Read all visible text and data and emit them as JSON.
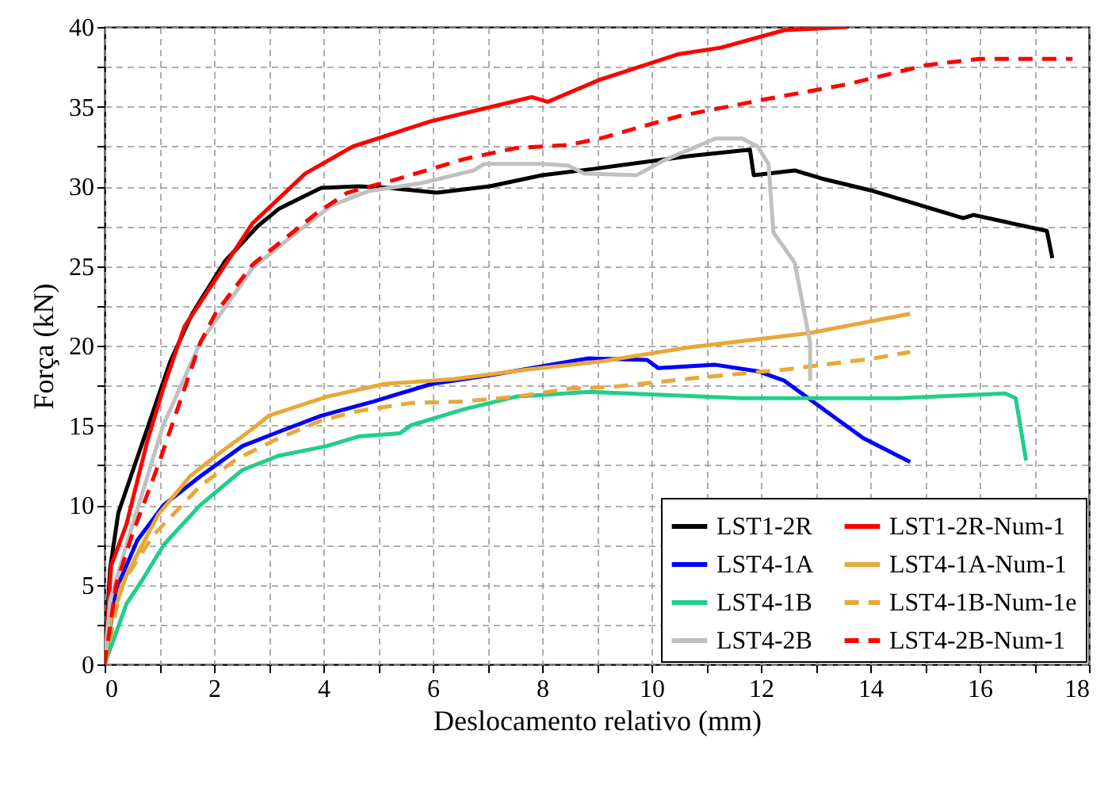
{
  "chart_data": {
    "type": "line",
    "xlabel": "Deslocamento relativo (mm)",
    "ylabel": "Força (kN)",
    "xlim": [
      0,
      18
    ],
    "ylim": [
      0,
      40
    ],
    "xticks": [
      0,
      {
        "value": 1,
        "label": null
      },
      2,
      {
        "value": 3,
        "label": null
      },
      4,
      {
        "value": 5,
        "label": null
      },
      6,
      {
        "value": 7,
        "label": null
      },
      8,
      {
        "value": 9,
        "label": null
      },
      10,
      {
        "value": 11,
        "label": null
      },
      12,
      {
        "value": 13,
        "label": null
      },
      14,
      {
        "value": 15,
        "label": null
      },
      16,
      {
        "value": 17,
        "label": null
      },
      18
    ],
    "yticks": [
      0,
      {
        "value": 2.5,
        "label": null
      },
      5,
      {
        "value": 7.5,
        "label": null
      },
      10,
      {
        "value": 12.5,
        "label": null
      },
      15,
      {
        "value": 17.5,
        "label": null
      },
      20,
      {
        "value": 22.5,
        "label": null
      },
      25,
      {
        "value": 27.5,
        "label": null
      },
      30,
      {
        "value": 32.5,
        "label": null
      },
      35,
      {
        "value": 37.5,
        "label": null
      },
      40
    ],
    "grid": true,
    "legend": "bottom right",
    "series": [
      {
        "name": "LST1-2R",
        "color": "#000000",
        "line_style": "solid",
        "x": [
          0,
          0.1,
          0.25,
          0.5,
          0.8,
          1.2,
          1.6,
          2.2,
          2.8,
          3.19,
          3.96,
          4.64,
          5.21,
          6.08,
          7.04,
          8.0,
          8.96,
          10.7,
          11.8,
          11.87,
          12.62,
          13.1,
          14.06,
          15.7,
          15.89,
          17.23,
          17.33
        ],
        "values": [
          0,
          6,
          9.5,
          12,
          15,
          19,
          22,
          25.3,
          27.5,
          28.6,
          29.9,
          30.0,
          29.9,
          29.6,
          30.0,
          30.7,
          31.1,
          31.9,
          32.3,
          30.7,
          31.0,
          30.5,
          29.7,
          28.0,
          28.2,
          27.2,
          25.5
        ]
      },
      {
        "name": "LST1-2R-Num-1",
        "color": "#ff0000",
        "line_style": "solid",
        "x": [
          0,
          0.12,
          0.4,
          0.78,
          1.08,
          1.46,
          2.23,
          2.71,
          3.67,
          4.54,
          5.98,
          7.33,
          7.81,
          8.1,
          9.06,
          10.5,
          11.27,
          12.43,
          13.58
        ],
        "values": [
          0,
          6.2,
          8.8,
          14,
          17.4,
          21.2,
          25.2,
          27.7,
          30.8,
          32.5,
          34.1,
          35.2,
          35.6,
          35.3,
          36.7,
          38.3,
          38.7,
          39.8,
          40
        ]
      },
      {
        "name": "LST4-1A",
        "color": "#0000ff",
        "line_style": "solid",
        "x": [
          0,
          0.21,
          0.6,
          1.08,
          1.75,
          2.52,
          3.19,
          3.96,
          4.92,
          5.98,
          7.14,
          8.48,
          8.85,
          9.92,
          10.12,
          11.17,
          11.94,
          12.43,
          13.19,
          13.87,
          14.73
        ],
        "values": [
          0,
          4.7,
          7.8,
          10,
          11.8,
          13.7,
          14.6,
          15.6,
          16.5,
          17.6,
          18.2,
          19.0,
          19.2,
          19.1,
          18.6,
          18.8,
          18.4,
          17.8,
          15.9,
          14.2,
          12.7
        ]
      },
      {
        "name": "LST4-1A-Num-1",
        "color": "#e8a838",
        "line_style": "solid",
        "x": [
          0,
          0.12,
          0.4,
          0.98,
          1.56,
          2.04,
          2.71,
          3.0,
          4.06,
          5.12,
          6.37,
          7.71,
          9.06,
          10.7,
          12.9,
          14.73
        ],
        "values": [
          0,
          2.8,
          5.6,
          9.4,
          11.8,
          13.1,
          14.8,
          15.6,
          16.8,
          17.6,
          17.9,
          18.5,
          19.0,
          19.9,
          20.8,
          22.0
        ]
      },
      {
        "name": "LST4-1B",
        "color": "#1fcf8a",
        "line_style": "solid",
        "x": [
          0,
          0.4,
          0.69,
          1.08,
          1.75,
          2.52,
          3.19,
          4.06,
          4.64,
          5.4,
          5.6,
          6.56,
          7.52,
          8.87,
          11.66,
          14.5,
          16.47,
          16.66,
          16.85
        ],
        "values": [
          0,
          3.8,
          5.3,
          7.5,
          10,
          12.2,
          13.1,
          13.7,
          14.3,
          14.5,
          15.0,
          16.0,
          16.8,
          17.1,
          16.7,
          16.7,
          17.0,
          16.7,
          12.8
        ]
      },
      {
        "name": "LST4-1B-Num-1e",
        "color": "#e8a838",
        "line_style": "dashed",
        "x": [
          0,
          0.31,
          0.89,
          1.75,
          2.42,
          3.19,
          3.96,
          4.64,
          5.6,
          6.56,
          7.52,
          8.48,
          9.25,
          10.89,
          12.43,
          14.06,
          14.73
        ],
        "values": [
          0,
          5,
          8.1,
          11.2,
          12.9,
          14.2,
          15.3,
          15.9,
          16.4,
          16.5,
          16.8,
          17.3,
          17.4,
          18.0,
          18.5,
          19.2,
          19.6
        ]
      },
      {
        "name": "LST4-2B",
        "color": "#c0c0c0",
        "line_style": "solid",
        "x": [
          0,
          0.1,
          0.4,
          1.07,
          1.75,
          2.71,
          3.29,
          4.15,
          4.83,
          5.79,
          6.75,
          6.94,
          8.0,
          8.48,
          8.77,
          9.73,
          10.21,
          11.17,
          11.66,
          11.94,
          12.14,
          12.23,
          12.62,
          12.9,
          12.9
        ],
        "values": [
          0,
          4,
          7.5,
          15,
          20.2,
          24.9,
          26.5,
          28.8,
          29.7,
          30.2,
          31.0,
          31.4,
          31.4,
          31.3,
          30.8,
          30.7,
          31.6,
          33.0,
          33.0,
          32.5,
          31.4,
          27.1,
          25.2,
          20.2,
          17.8
        ]
      },
      {
        "name": "LST4-2B-Num-1",
        "color": "#ff0000",
        "line_style": "dashed",
        "x": [
          0,
          0.21,
          0.5,
          0.98,
          1.75,
          2.04,
          2.71,
          3.87,
          4.44,
          5.4,
          6.56,
          7.52,
          8.48,
          9.06,
          10.5,
          12.14,
          13.58,
          15.02,
          16.0,
          17.7
        ],
        "values": [
          0,
          5,
          8.1,
          12.5,
          20.2,
          22.1,
          25.1,
          28.3,
          29.6,
          30.5,
          31.7,
          32.4,
          32.6,
          33.0,
          34.4,
          35.5,
          36.4,
          37.6,
          38.0,
          38.0
        ]
      }
    ]
  }
}
